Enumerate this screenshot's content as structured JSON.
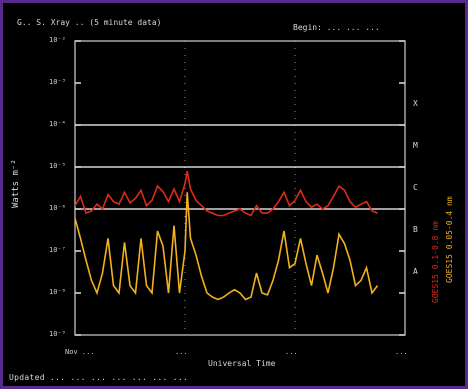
{
  "title": "G.. S. Xray .. (5 minute data)",
  "subtitle": "Begin: ... ... ...",
  "footer": "Updated ... ... ...     ... ...     ... ...",
  "chart_data": {
    "type": "line",
    "xlabel": "Universal Time",
    "ylabel": "Watts m⁻²",
    "y_log": true,
    "ylim": [
      1e-09,
      0.01
    ],
    "y_tick_labels": [
      "10⁻²",
      "10⁻³",
      "10⁻⁴",
      "10⁻⁵",
      "10⁻⁶",
      "10⁻⁷",
      "10⁻⁸",
      "10⁻⁹"
    ],
    "x_tick_labels": [
      "Nov ...",
      "...",
      "...",
      "..."
    ],
    "xlim": [
      0,
      3
    ],
    "flare_class_lines": [
      0.0001,
      1e-05,
      1e-06
    ],
    "flare_class_labels": [
      "X",
      "M",
      "C",
      "B",
      "A"
    ],
    "series": [
      {
        "name": "GOES15 0.1-0.8 nm",
        "color": "#e02a1a",
        "x": [
          0.0,
          0.05,
          0.1,
          0.15,
          0.2,
          0.25,
          0.3,
          0.35,
          0.4,
          0.45,
          0.5,
          0.55,
          0.6,
          0.65,
          0.7,
          0.75,
          0.8,
          0.85,
          0.9,
          0.95,
          1.0,
          1.02,
          1.05,
          1.1,
          1.15,
          1.2,
          1.25,
          1.3,
          1.35,
          1.4,
          1.45,
          1.5,
          1.55,
          1.6,
          1.65,
          1.7,
          1.75,
          1.8,
          1.85,
          1.9,
          1.95,
          2.0,
          2.05,
          2.1,
          2.15,
          2.2,
          2.25,
          2.3,
          2.35,
          2.4,
          2.45,
          2.5,
          2.55,
          2.6,
          2.65,
          2.7,
          2.75
        ],
        "y": [
          1.2e-06,
          2e-06,
          8e-07,
          9e-07,
          1.3e-06,
          1e-06,
          2.2e-06,
          1.5e-06,
          1.3e-06,
          2.5e-06,
          1.4e-06,
          1.8e-06,
          2.8e-06,
          1.2e-06,
          1.6e-06,
          3.5e-06,
          2.6e-06,
          1.5e-06,
          3e-06,
          1.5e-06,
          4e-06,
          8e-06,
          3e-06,
          1.6e-06,
          1.2e-06,
          9e-07,
          8e-07,
          7e-07,
          7e-07,
          8e-07,
          9e-07,
          1e-06,
          8e-07,
          7e-07,
          1.2e-06,
          8e-07,
          8e-07,
          1e-06,
          1.5e-06,
          2.5e-06,
          1.2e-06,
          1.6e-06,
          2.8e-06,
          1.5e-06,
          1.1e-06,
          1.3e-06,
          1e-06,
          1.2e-06,
          2e-06,
          3.5e-06,
          2.8e-06,
          1.5e-06,
          1.1e-06,
          1.3e-06,
          1.5e-06,
          9e-07,
          8e-07
        ]
      },
      {
        "name": "GOES15 0.05-0.4 nm",
        "color": "#f2b21e",
        "x": [
          0.0,
          0.05,
          0.1,
          0.15,
          0.2,
          0.25,
          0.3,
          0.35,
          0.4,
          0.45,
          0.5,
          0.55,
          0.6,
          0.65,
          0.7,
          0.75,
          0.8,
          0.85,
          0.9,
          0.95,
          1.0,
          1.02,
          1.05,
          1.1,
          1.15,
          1.2,
          1.25,
          1.3,
          1.35,
          1.4,
          1.45,
          1.5,
          1.55,
          1.6,
          1.65,
          1.7,
          1.75,
          1.8,
          1.85,
          1.9,
          1.95,
          2.0,
          2.05,
          2.1,
          2.15,
          2.2,
          2.25,
          2.3,
          2.35,
          2.4,
          2.45,
          2.5,
          2.55,
          2.6,
          2.65,
          2.7,
          2.75
        ],
        "y": [
          6e-07,
          2e-07,
          6e-08,
          2e-08,
          1e-08,
          3e-08,
          2e-07,
          1.5e-08,
          1e-08,
          1.6e-07,
          1.5e-08,
          1e-08,
          2e-07,
          1.5e-08,
          1e-08,
          3e-07,
          1.3e-07,
          1e-08,
          4e-07,
          1e-08,
          1e-07,
          2.5e-06,
          2e-07,
          8e-08,
          2.5e-08,
          1e-08,
          8e-09,
          7e-09,
          8e-09,
          1e-08,
          1.2e-08,
          1e-08,
          7e-09,
          8e-09,
          3e-08,
          1e-08,
          9e-09,
          2e-08,
          6e-08,
          3e-07,
          4e-08,
          5e-08,
          2e-07,
          5e-08,
          1.5e-08,
          8e-08,
          3e-08,
          1e-08,
          4e-08,
          2.5e-07,
          1.5e-07,
          6e-08,
          1.5e-08,
          2e-08,
          4e-08,
          1e-08,
          1.5e-08
        ]
      }
    ],
    "legend": [
      "GOES15 0.1-0.8 nm",
      "GOES15 0.05-0.4 nm"
    ],
    "legend_placement": "right",
    "grid": false
  }
}
